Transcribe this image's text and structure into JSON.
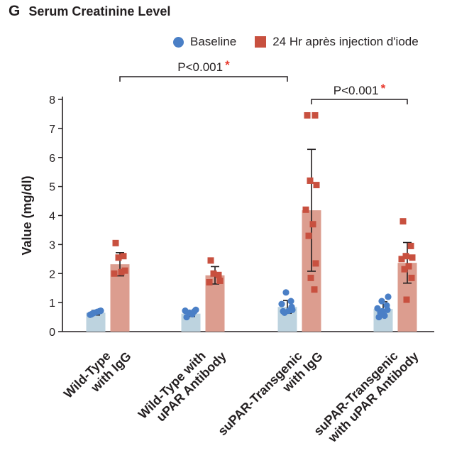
{
  "panel": {
    "letter": "G"
  },
  "chart_data": {
    "type": "bar",
    "title": "Serum Creatinine Level",
    "ylabel": "Value (mg/dl)",
    "xlabel": "",
    "ylim": [
      0,
      8
    ],
    "yticks": [
      0,
      1,
      2,
      3,
      4,
      5,
      6,
      7,
      8
    ],
    "grid": false,
    "legend_position": "top-right",
    "categories": [
      [
        "Wild-Type",
        "with IgG"
      ],
      [
        "Wild-Type with",
        "uPAR Antibody"
      ],
      [
        "suPAR-Transgenic",
        "with IgG"
      ],
      [
        "suPAR-Transgenic",
        "with uPAR Antibody"
      ]
    ],
    "series": [
      {
        "name": "Baseline",
        "color": "#4a7fc6",
        "bar_color": "#bdd3df",
        "marker": "circle",
        "means": [
          0.65,
          0.62,
          0.85,
          0.78
        ],
        "error": [
          0.08,
          0.1,
          0.22,
          0.25
        ],
        "points": [
          [
            0.6,
            0.7,
            0.65,
            0.72,
            0.58,
            0.68,
            0.63
          ],
          [
            0.5,
            0.7,
            0.65,
            0.75,
            0.72,
            0.6
          ],
          [
            0.7,
            1.05,
            1.35,
            0.75,
            0.95,
            0.72,
            0.65,
            0.85
          ],
          [
            0.5,
            0.9,
            1.05,
            1.2,
            0.8,
            0.55,
            0.65,
            0.75,
            0.7
          ]
        ]
      },
      {
        "name": "24 Hr après injection d'iode",
        "color": "#c8503f",
        "bar_color": "#dc9d8f",
        "marker": "square",
        "means": [
          2.32,
          1.94,
          4.18,
          2.37
        ],
        "error": [
          0.4,
          0.3,
          2.1,
          0.7
        ],
        "points": [
          [
            3.05,
            2.6,
            2.55,
            2.1,
            2.0,
            2.05
          ],
          [
            2.45,
            1.95,
            2.0,
            1.75,
            1.7
          ],
          [
            7.45,
            7.45,
            5.2,
            5.05,
            4.2,
            3.7,
            3.3,
            2.35,
            1.85,
            1.45
          ],
          [
            3.8,
            2.95,
            2.6,
            2.55,
            2.5,
            2.25,
            2.15,
            1.85,
            1.1
          ]
        ]
      }
    ],
    "annotations": [
      {
        "text": "P<0.001",
        "marker": "*",
        "marker_color": "#e8392d",
        "from": [
          0,
          1
        ],
        "to": [
          2,
          0
        ]
      },
      {
        "text": "P<0.001",
        "marker": "*",
        "marker_color": "#e8392d",
        "from": [
          2,
          1
        ],
        "to": [
          3,
          1
        ]
      }
    ]
  }
}
